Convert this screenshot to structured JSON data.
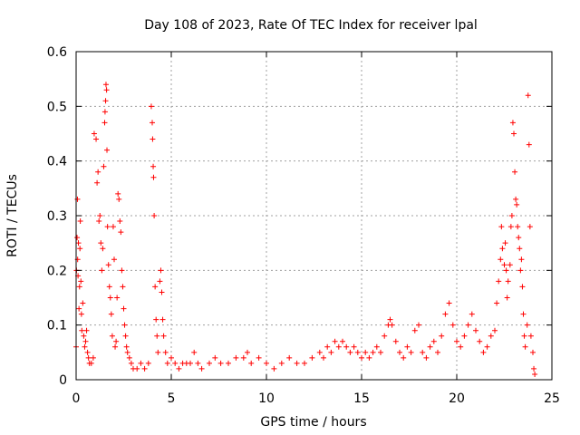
{
  "chart_data": {
    "type": "scatter",
    "title": "Day 108 of 2023, Rate Of TEC Index for receiver lpal",
    "xlabel": "GPS time / hours",
    "ylabel": "ROTI / TECUs",
    "xlim": [
      0,
      25
    ],
    "ylim": [
      0,
      0.6
    ],
    "x_ticks": [
      "0",
      "5",
      "10",
      "15",
      "20",
      "25"
    ],
    "y_ticks": [
      "0",
      "0.1",
      "0.2",
      "0.3",
      "0.4",
      "0.5",
      "0.6"
    ],
    "grid": true,
    "marker": "plus",
    "color": "#ff0000",
    "legend": "none",
    "series": [
      {
        "points": [
          [
            0.0,
            0.06
          ],
          [
            0.02,
            0.2
          ],
          [
            0.05,
            0.26
          ],
          [
            0.07,
            0.33
          ],
          [
            0.08,
            0.22
          ],
          [
            0.1,
            0.19
          ],
          [
            0.12,
            0.25
          ],
          [
            0.15,
            0.13
          ],
          [
            0.18,
            0.17
          ],
          [
            0.2,
            0.24
          ],
          [
            0.22,
            0.29
          ],
          [
            0.25,
            0.18
          ],
          [
            0.28,
            0.12
          ],
          [
            0.3,
            0.09
          ],
          [
            0.35,
            0.14
          ],
          [
            0.4,
            0.08
          ],
          [
            0.45,
            0.06
          ],
          [
            0.5,
            0.07
          ],
          [
            0.55,
            0.09
          ],
          [
            0.6,
            0.05
          ],
          [
            0.65,
            0.04
          ],
          [
            0.7,
            0.03
          ],
          [
            0.8,
            0.03
          ],
          [
            0.9,
            0.04
          ],
          [
            0.95,
            0.45
          ],
          [
            1.05,
            0.44
          ],
          [
            1.1,
            0.36
          ],
          [
            1.15,
            0.38
          ],
          [
            1.2,
            0.29
          ],
          [
            1.25,
            0.3
          ],
          [
            1.3,
            0.25
          ],
          [
            1.35,
            0.2
          ],
          [
            1.4,
            0.24
          ],
          [
            1.45,
            0.39
          ],
          [
            1.5,
            0.47
          ],
          [
            1.52,
            0.49
          ],
          [
            1.55,
            0.51
          ],
          [
            1.57,
            0.54
          ],
          [
            1.6,
            0.53
          ],
          [
            1.62,
            0.42
          ],
          [
            1.65,
            0.28
          ],
          [
            1.7,
            0.21
          ],
          [
            1.75,
            0.17
          ],
          [
            1.8,
            0.15
          ],
          [
            1.85,
            0.12
          ],
          [
            1.9,
            0.08
          ],
          [
            1.95,
            0.28
          ],
          [
            2.0,
            0.22
          ],
          [
            2.05,
            0.06
          ],
          [
            2.1,
            0.07
          ],
          [
            2.15,
            0.15
          ],
          [
            2.2,
            0.34
          ],
          [
            2.25,
            0.33
          ],
          [
            2.3,
            0.29
          ],
          [
            2.35,
            0.27
          ],
          [
            2.4,
            0.2
          ],
          [
            2.45,
            0.17
          ],
          [
            2.5,
            0.13
          ],
          [
            2.55,
            0.1
          ],
          [
            2.6,
            0.08
          ],
          [
            2.65,
            0.06
          ],
          [
            2.7,
            0.05
          ],
          [
            2.8,
            0.04
          ],
          [
            2.9,
            0.03
          ],
          [
            3.0,
            0.02
          ],
          [
            3.2,
            0.02
          ],
          [
            3.4,
            0.03
          ],
          [
            3.6,
            0.02
          ],
          [
            3.8,
            0.03
          ],
          [
            3.95,
            0.5
          ],
          [
            4.0,
            0.47
          ],
          [
            4.02,
            0.44
          ],
          [
            4.05,
            0.39
          ],
          [
            4.07,
            0.37
          ],
          [
            4.1,
            0.3
          ],
          [
            4.15,
            0.17
          ],
          [
            4.2,
            0.11
          ],
          [
            4.25,
            0.08
          ],
          [
            4.3,
            0.05
          ],
          [
            4.4,
            0.18
          ],
          [
            4.45,
            0.2
          ],
          [
            4.5,
            0.16
          ],
          [
            4.55,
            0.11
          ],
          [
            4.6,
            0.08
          ],
          [
            4.7,
            0.05
          ],
          [
            4.8,
            0.03
          ],
          [
            5.0,
            0.04
          ],
          [
            5.2,
            0.03
          ],
          [
            5.4,
            0.02
          ],
          [
            5.6,
            0.03
          ],
          [
            5.8,
            0.03
          ],
          [
            6.0,
            0.03
          ],
          [
            6.2,
            0.05
          ],
          [
            6.4,
            0.03
          ],
          [
            6.6,
            0.02
          ],
          [
            7.0,
            0.03
          ],
          [
            7.3,
            0.04
          ],
          [
            7.6,
            0.03
          ],
          [
            8.0,
            0.03
          ],
          [
            8.4,
            0.04
          ],
          [
            8.8,
            0.04
          ],
          [
            9.0,
            0.05
          ],
          [
            9.2,
            0.03
          ],
          [
            9.6,
            0.04
          ],
          [
            10.0,
            0.03
          ],
          [
            10.4,
            0.02
          ],
          [
            10.8,
            0.03
          ],
          [
            11.2,
            0.04
          ],
          [
            11.6,
            0.03
          ],
          [
            12.0,
            0.03
          ],
          [
            12.4,
            0.04
          ],
          [
            12.8,
            0.05
          ],
          [
            13.0,
            0.04
          ],
          [
            13.2,
            0.06
          ],
          [
            13.4,
            0.05
          ],
          [
            13.6,
            0.07
          ],
          [
            13.8,
            0.06
          ],
          [
            14.0,
            0.07
          ],
          [
            14.2,
            0.06
          ],
          [
            14.4,
            0.05
          ],
          [
            14.6,
            0.06
          ],
          [
            14.8,
            0.05
          ],
          [
            15.0,
            0.04
          ],
          [
            15.2,
            0.05
          ],
          [
            15.4,
            0.04
          ],
          [
            15.6,
            0.05
          ],
          [
            15.8,
            0.06
          ],
          [
            16.0,
            0.05
          ],
          [
            16.2,
            0.08
          ],
          [
            16.4,
            0.1
          ],
          [
            16.5,
            0.11
          ],
          [
            16.6,
            0.1
          ],
          [
            16.8,
            0.07
          ],
          [
            17.0,
            0.05
          ],
          [
            17.2,
            0.04
          ],
          [
            17.4,
            0.06
          ],
          [
            17.6,
            0.05
          ],
          [
            17.8,
            0.09
          ],
          [
            18.0,
            0.1
          ],
          [
            18.2,
            0.05
          ],
          [
            18.4,
            0.04
          ],
          [
            18.6,
            0.06
          ],
          [
            18.8,
            0.07
          ],
          [
            19.0,
            0.05
          ],
          [
            19.2,
            0.08
          ],
          [
            19.4,
            0.12
          ],
          [
            19.6,
            0.14
          ],
          [
            19.8,
            0.1
          ],
          [
            20.0,
            0.07
          ],
          [
            20.2,
            0.06
          ],
          [
            20.4,
            0.08
          ],
          [
            20.6,
            0.1
          ],
          [
            20.8,
            0.12
          ],
          [
            21.0,
            0.09
          ],
          [
            21.2,
            0.07
          ],
          [
            21.4,
            0.05
          ],
          [
            21.6,
            0.06
          ],
          [
            21.8,
            0.08
          ],
          [
            22.0,
            0.09
          ],
          [
            22.1,
            0.14
          ],
          [
            22.2,
            0.18
          ],
          [
            22.3,
            0.22
          ],
          [
            22.35,
            0.28
          ],
          [
            22.4,
            0.24
          ],
          [
            22.5,
            0.21
          ],
          [
            22.55,
            0.25
          ],
          [
            22.6,
            0.2
          ],
          [
            22.65,
            0.15
          ],
          [
            22.7,
            0.18
          ],
          [
            22.8,
            0.21
          ],
          [
            22.85,
            0.28
          ],
          [
            22.9,
            0.3
          ],
          [
            22.95,
            0.47
          ],
          [
            23.0,
            0.45
          ],
          [
            23.05,
            0.38
          ],
          [
            23.1,
            0.33
          ],
          [
            23.15,
            0.32
          ],
          [
            23.2,
            0.28
          ],
          [
            23.25,
            0.26
          ],
          [
            23.3,
            0.24
          ],
          [
            23.35,
            0.2
          ],
          [
            23.4,
            0.22
          ],
          [
            23.45,
            0.17
          ],
          [
            23.5,
            0.12
          ],
          [
            23.55,
            0.08
          ],
          [
            23.6,
            0.06
          ],
          [
            23.7,
            0.1
          ],
          [
            23.75,
            0.52
          ],
          [
            23.8,
            0.43
          ],
          [
            23.85,
            0.28
          ],
          [
            23.9,
            0.08
          ],
          [
            24.0,
            0.05
          ],
          [
            24.05,
            0.02
          ],
          [
            24.1,
            0.01
          ]
        ]
      }
    ]
  }
}
